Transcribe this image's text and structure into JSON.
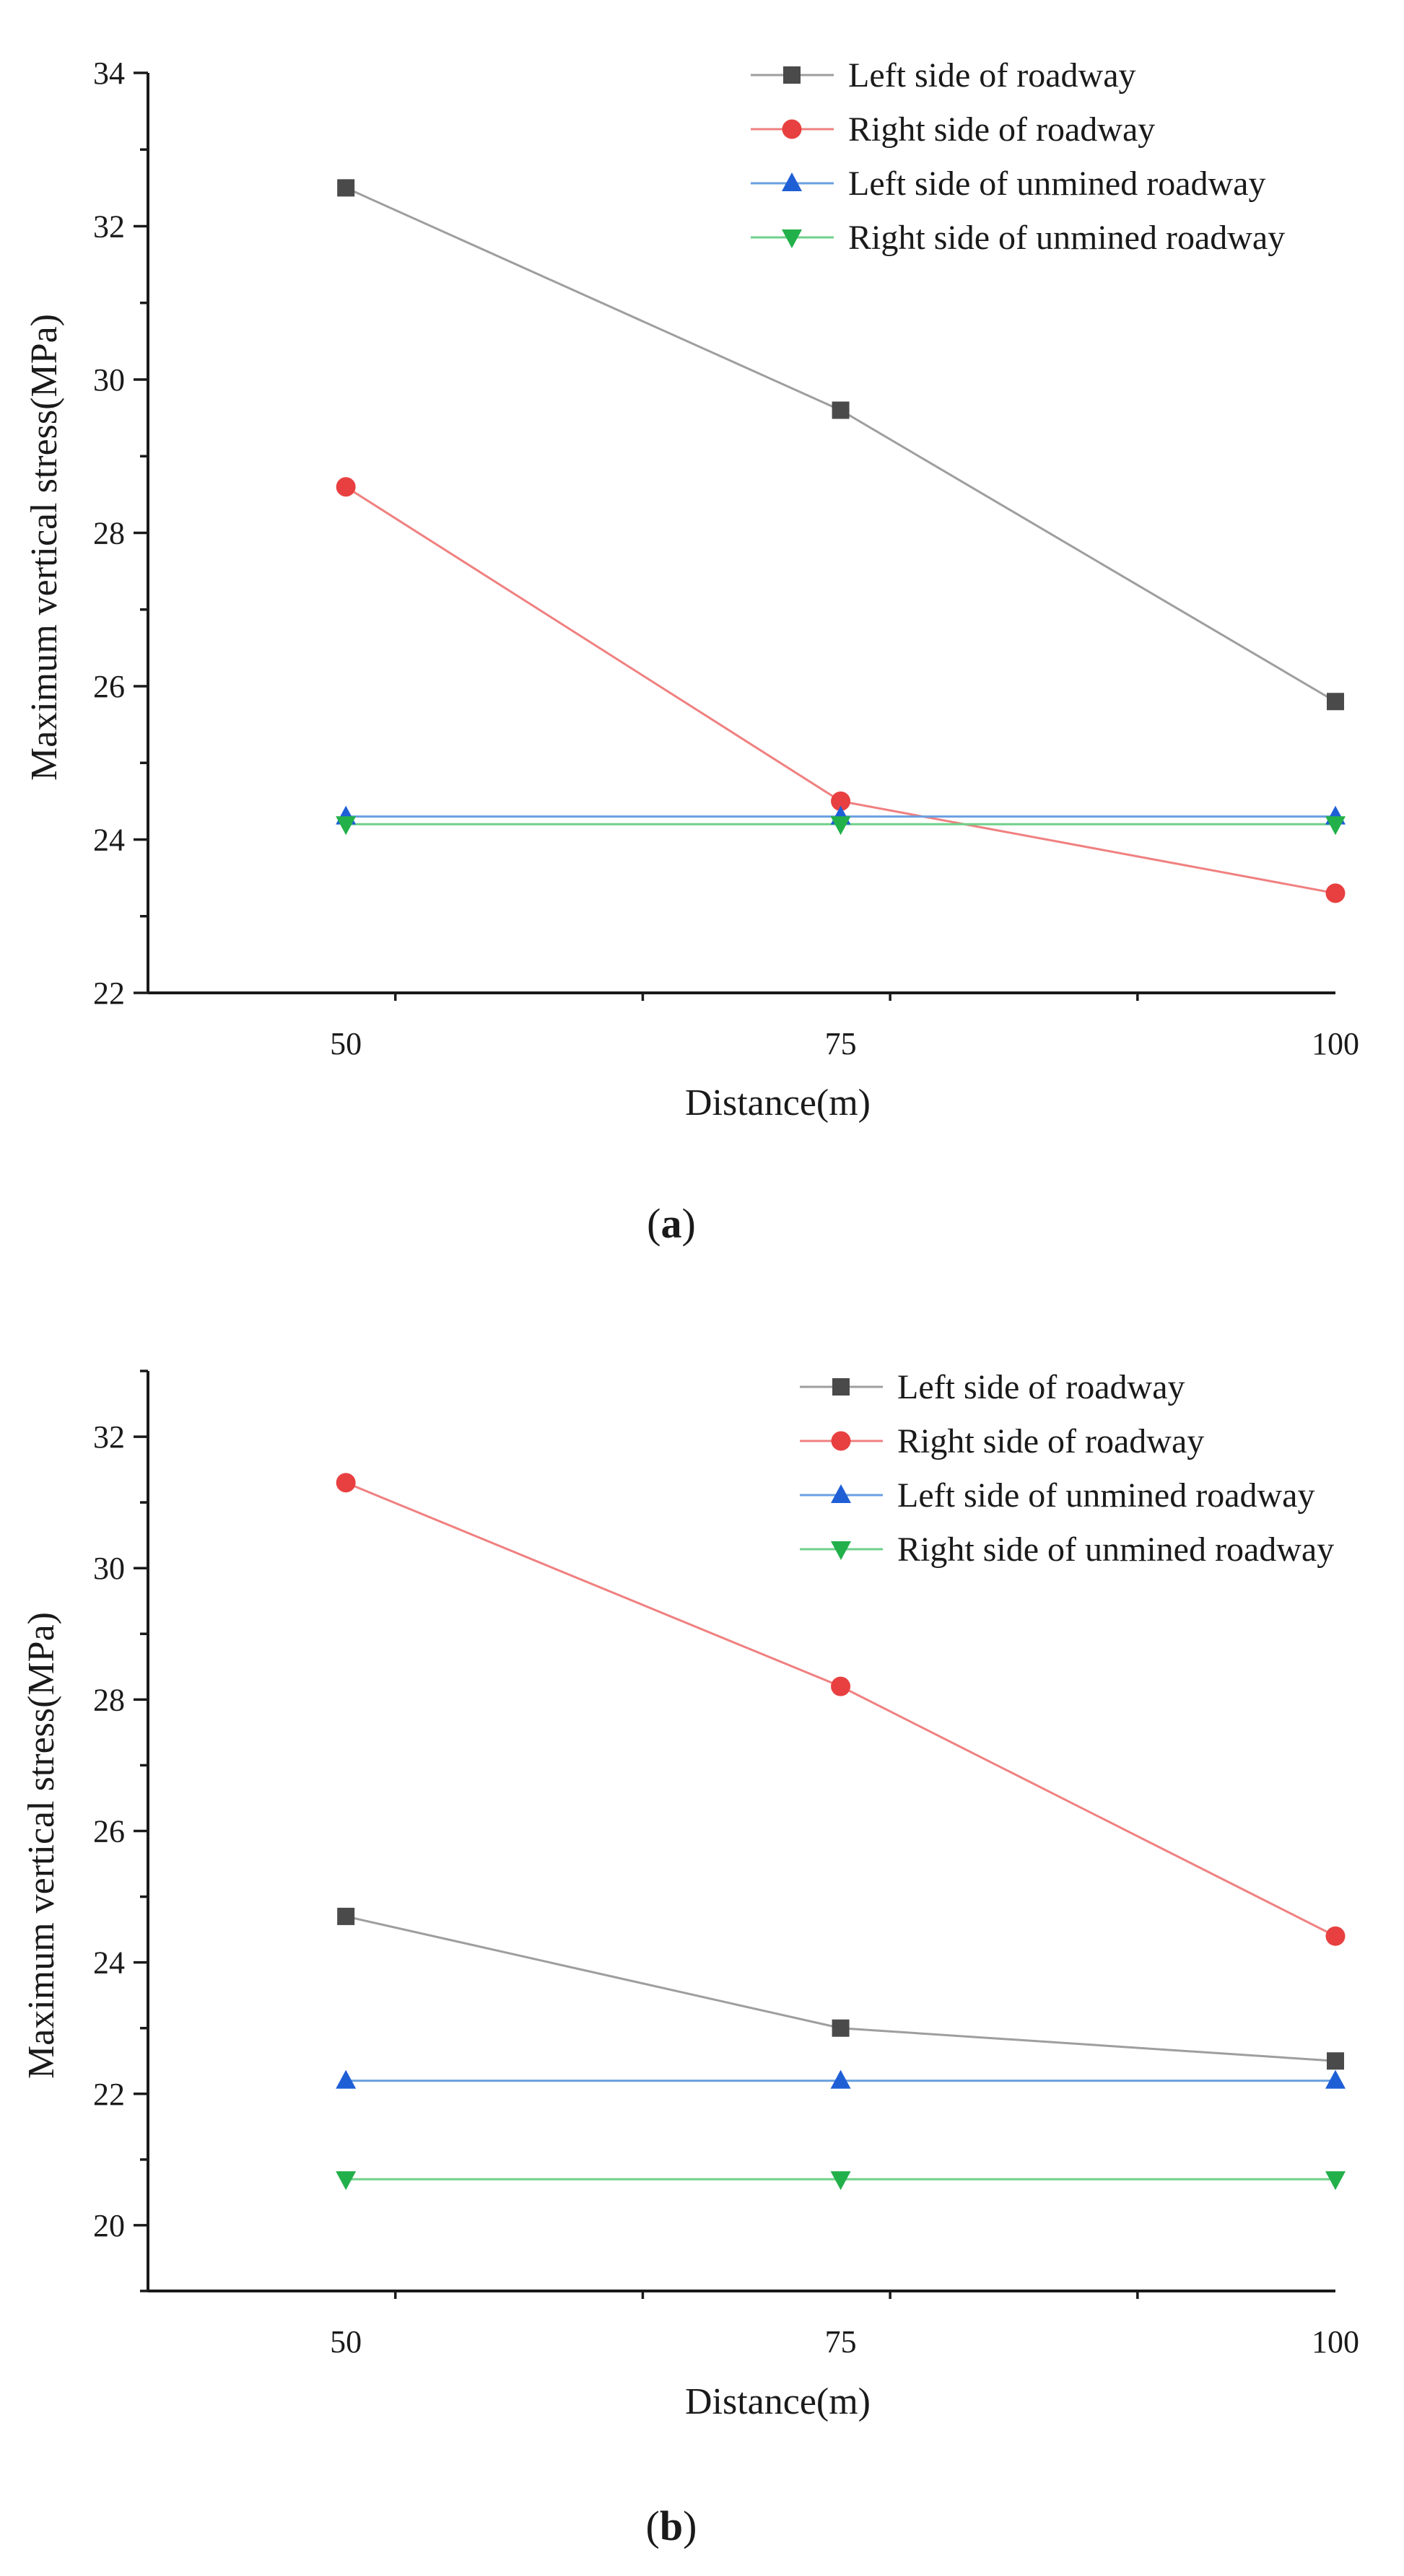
{
  "chart_data": [
    {
      "type": "line",
      "panel_label": "a",
      "title": "",
      "xlabel": "Distance(m)",
      "ylabel": "Maximum vertical stress(MPa)",
      "categories": [
        50,
        75,
        100
      ],
      "x_tick_labels": [
        "50",
        "75",
        "100"
      ],
      "y_tick_labels": [
        "22",
        "24",
        "26",
        "28",
        "30",
        "32",
        "34"
      ],
      "xlim": [
        40,
        100
      ],
      "ylim": [
        22,
        34
      ],
      "grid": false,
      "legend_position": "top-right",
      "series": [
        {
          "name": "Left side of roadway",
          "values": [
            32.5,
            29.6,
            25.8
          ],
          "color": "#9e9e9e",
          "marker_color": "#4a4a4a",
          "marker": "square"
        },
        {
          "name": "Right side of roadway",
          "values": [
            28.6,
            24.5,
            23.3
          ],
          "color": "#f08080",
          "marker_color": "#e84040",
          "marker": "circle"
        },
        {
          "name": "Left side of unmined roadway",
          "values": [
            24.3,
            24.3,
            24.3
          ],
          "color": "#6a9fe0",
          "marker_color": "#1f5fd6",
          "marker": "triangle-up"
        },
        {
          "name": "Right side of unmined roadway",
          "values": [
            24.2,
            24.2,
            24.2
          ],
          "color": "#6fd08a",
          "marker_color": "#22b04a",
          "marker": "triangle-down"
        }
      ]
    },
    {
      "type": "line",
      "panel_label": "b",
      "title": "",
      "xlabel": "Distance(m)",
      "ylabel": "Maximum vertical stress(MPa)",
      "categories": [
        50,
        75,
        100
      ],
      "x_tick_labels": [
        "50",
        "75",
        "100"
      ],
      "y_tick_labels": [
        "20",
        "22",
        "24",
        "26",
        "28",
        "30",
        "32"
      ],
      "xlim": [
        40,
        100
      ],
      "ylim": [
        19,
        33
      ],
      "grid": false,
      "legend_position": "top-right",
      "series": [
        {
          "name": "Left side of roadway",
          "values": [
            24.7,
            23.0,
            22.5
          ],
          "color": "#9e9e9e",
          "marker_color": "#4a4a4a",
          "marker": "square"
        },
        {
          "name": "Right side of roadway",
          "values": [
            31.3,
            28.2,
            24.4
          ],
          "color": "#f08080",
          "marker_color": "#e84040",
          "marker": "circle"
        },
        {
          "name": "Left side of unmined roadway",
          "values": [
            22.2,
            22.2,
            22.2
          ],
          "color": "#6a9fe0",
          "marker_color": "#1f5fd6",
          "marker": "triangle-up"
        },
        {
          "name": "Right side of unmined roadway",
          "values": [
            20.7,
            20.7,
            20.7
          ],
          "color": "#6fd08a",
          "marker_color": "#22b04a",
          "marker": "triangle-down"
        }
      ]
    }
  ]
}
